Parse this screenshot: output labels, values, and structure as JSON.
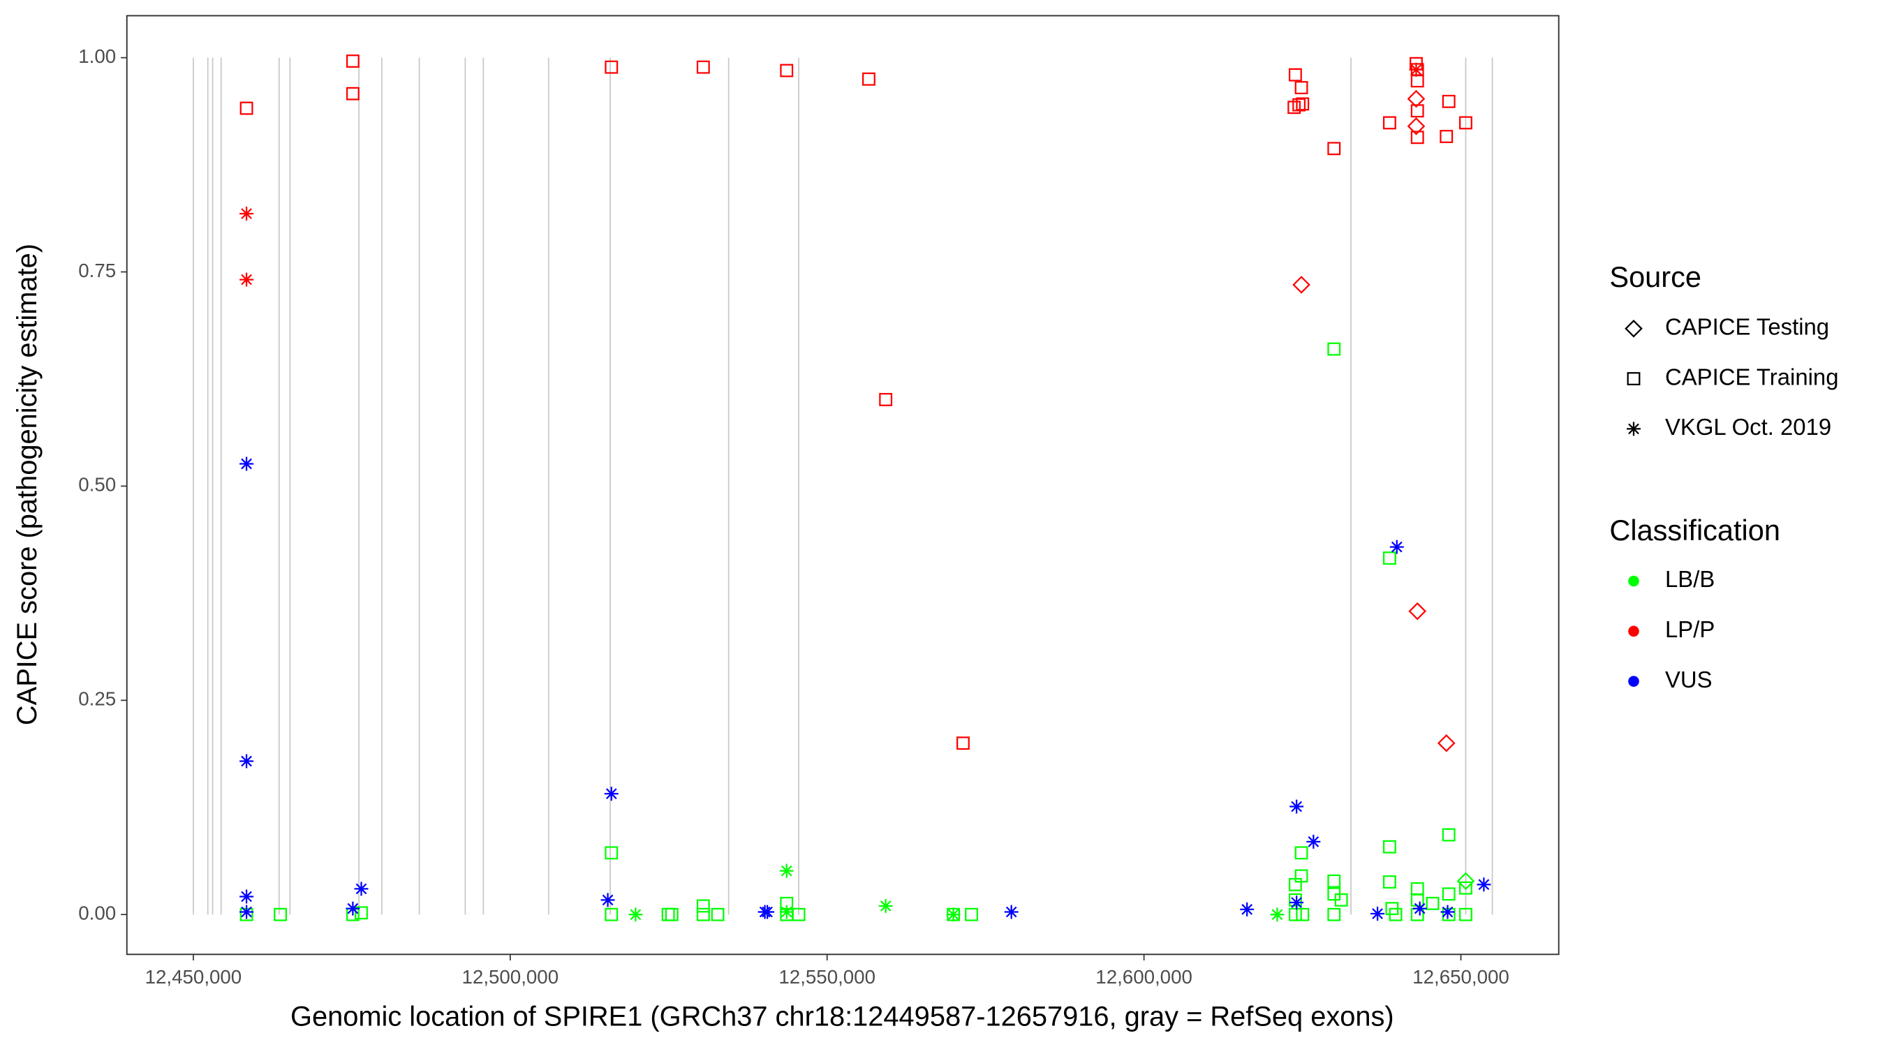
{
  "chart_data": {
    "type": "scatter",
    "x_label": "Genomic location of SPIRE1 (GRCh37 chr18:12449587-12657916, gray = RefSeq exons)",
    "y_label": "CAPICE score (pathogenicity estimate)",
    "xlim": [
      12439514,
      12665443
    ],
    "ylim": [
      -0.0465,
      1.049
    ],
    "xticks": [
      {
        "value": 12450000,
        "label": "12,450,000"
      },
      {
        "value": 12500000,
        "label": "12,500,000"
      },
      {
        "value": 12550000,
        "label": "12,550,000"
      },
      {
        "value": 12600000,
        "label": "12,600,000"
      },
      {
        "value": 12650000,
        "label": "12,650,000"
      }
    ],
    "yticks": [
      {
        "value": 0,
        "label": "0.00"
      },
      {
        "value": 0.25,
        "label": "0.25"
      },
      {
        "value": 0.5,
        "label": "0.50"
      },
      {
        "value": 0.75,
        "label": "0.75"
      },
      {
        "value": 1,
        "label": "1.00"
      }
    ],
    "grid": false,
    "exon_color": "#c8c8c8",
    "exons": [
      12450000,
      12452288,
      12453051,
      12454385,
      12463537,
      12465253,
      12476120,
      12479743,
      12485653,
      12492899,
      12495758,
      12506054,
      12515778,
      12534462,
      12545521,
      12632653,
      12650767,
      12654961
    ],
    "source_title": "Source",
    "sources": [
      {
        "name": "CAPICE Testing",
        "shape": "diamond"
      },
      {
        "name": "CAPICE Training",
        "shape": "square"
      },
      {
        "name": "VKGL Oct. 2019",
        "shape": "asterisk"
      }
    ],
    "classification_title": "Classification",
    "classifications": [
      {
        "name": "LB/B",
        "color": "#00ff00"
      },
      {
        "name": "LP/P",
        "color": "#ff0000"
      },
      {
        "name": "VUS",
        "color": "#0000ff"
      }
    ],
    "groups": [
      {
        "source": "CAPICE Training",
        "classification": "LB/B",
        "x": [
          12458389,
          12463728,
          12475167,
          12476502,
          12515968,
          12515968,
          12524929,
          12525501,
          12530459,
          12530459,
          12532745,
          12543614,
          12543614,
          12545521,
          12569925,
          12572785,
          12629983,
          12638753,
          12638753,
          12638753,
          12624835,
          12624835,
          12623882,
          12623882,
          12623882,
          12625026,
          12629983,
          12629983,
          12629983,
          12631127,
          12639135,
          12639707,
          12643139,
          12643139,
          12643139,
          12645543,
          12648096,
          12648096,
          12648096,
          12650767,
          12650767
        ],
        "y": [
          0,
          0,
          0,
          0.002,
          0.072,
          0,
          0,
          0,
          0.01,
          0,
          0,
          0.013,
          0,
          0,
          0,
          0,
          0.66,
          0.416,
          0.079,
          0.038,
          0.072,
          0.045,
          0.035,
          0.017,
          0,
          0,
          0.039,
          0.024,
          0,
          0.017,
          0.007,
          0,
          0.03,
          0.017,
          0,
          0.013,
          0.093,
          0.024,
          0,
          0.031,
          0
        ]
      },
      {
        "source": "CAPICE Testing",
        "classification": "LB/B",
        "x": [
          12650767
        ],
        "y": [
          0.039
        ]
      },
      {
        "source": "VKGL Oct. 2019",
        "classification": "LB/B",
        "x": [
          12519782,
          12543614,
          12543614,
          12559248,
          12621025,
          12569925
        ],
        "y": [
          0,
          0.051,
          0.003,
          0.01,
          0,
          0
        ]
      },
      {
        "source": "CAPICE Training",
        "classification": "LP/P",
        "x": [
          12458389,
          12475167,
          12475167,
          12515968,
          12530459,
          12543614,
          12556579,
          12559248,
          12571450,
          12623882,
          12624835,
          12623691,
          12624454,
          12625026,
          12629983,
          12638753,
          12642948,
          12643139,
          12643139,
          12643139,
          12643139,
          12648096,
          12647715,
          12650767
        ],
        "y": [
          0.941,
          0.996,
          0.958,
          0.989,
          0.989,
          0.985,
          0.975,
          0.601,
          0.2,
          0.98,
          0.965,
          0.942,
          0.945,
          0.946,
          0.894,
          0.924,
          0.993,
          0.986,
          0.973,
          0.938,
          0.907,
          0.949,
          0.908,
          0.924
        ]
      },
      {
        "source": "CAPICE Testing",
        "classification": "LP/P",
        "x": [
          12642948,
          12642948,
          12624835,
          12643139,
          12647715
        ],
        "y": [
          0.952,
          0.92,
          0.735,
          0.354,
          0.2
        ]
      },
      {
        "source": "VKGL Oct. 2019",
        "classification": "LP/P",
        "x": [
          12458389,
          12458389,
          12642948
        ],
        "y": [
          0.818,
          0.741,
          0.986
        ]
      },
      {
        "source": "VKGL Oct. 2019",
        "classification": "VUS",
        "x": [
          12458389,
          12458389,
          12458389,
          12458389,
          12475167,
          12476502,
          12515968,
          12515396,
          12540183,
          12540565,
          12579077,
          12616255,
          12624072,
          12626741,
          12624072,
          12639898,
          12636847,
          12643520,
          12647906,
          12653625
        ],
        "y": [
          0.526,
          0.179,
          0.021,
          0.003,
          0.007,
          0.03,
          0.141,
          0.017,
          0.003,
          0.003,
          0.003,
          0.006,
          0.126,
          0.085,
          0.014,
          0.429,
          0.001,
          0.007,
          0.003,
          0.035
        ]
      }
    ]
  }
}
